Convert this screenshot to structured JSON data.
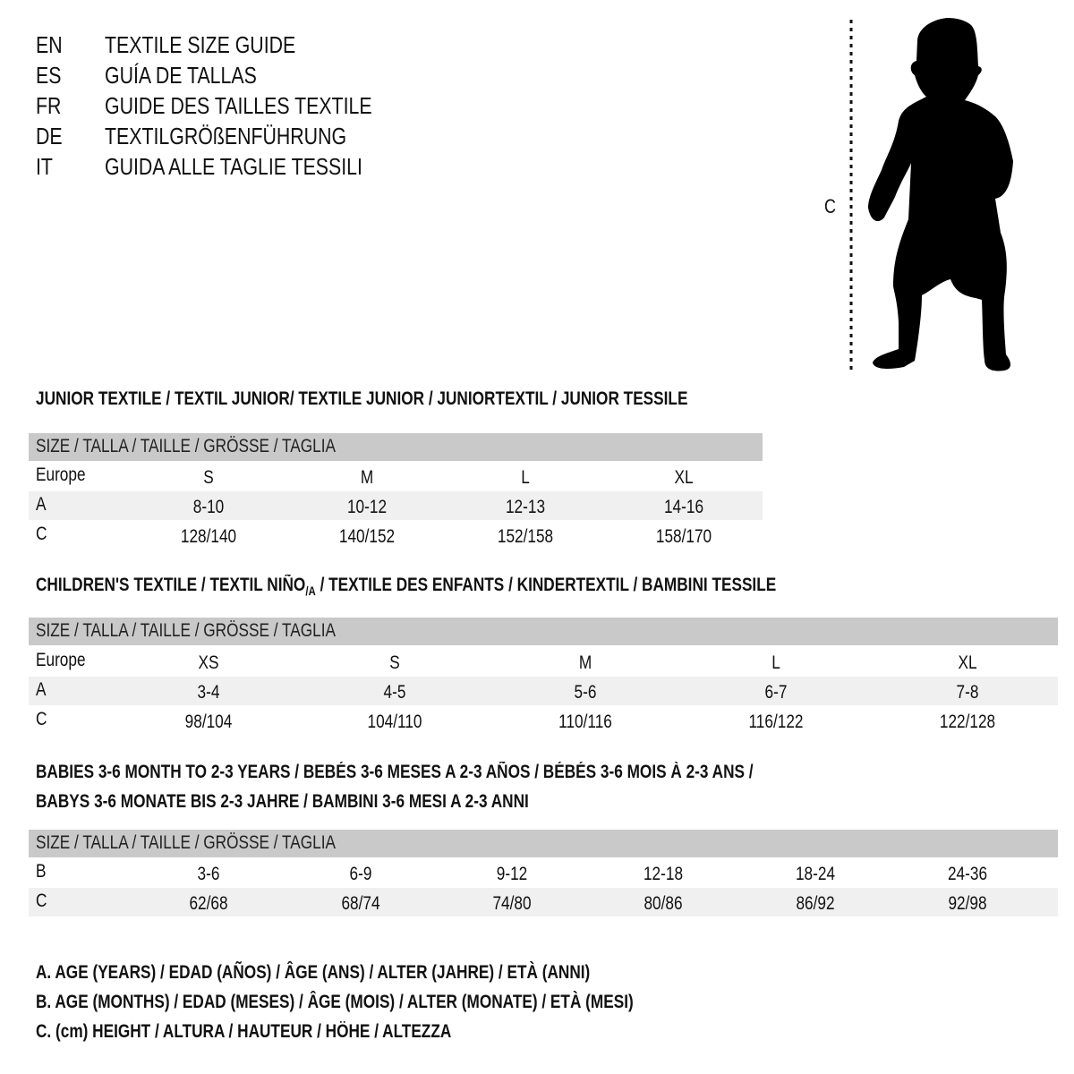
{
  "titles": [
    {
      "code": "EN",
      "text": "TEXTILE SIZE GUIDE"
    },
    {
      "code": "ES",
      "text": "GUÍA DE TALLAS"
    },
    {
      "code": "FR",
      "text": "GUIDE DES TAILLES TEXTILE"
    },
    {
      "code": "DE",
      "text": "TEXTILGRÖßENFÜHRUNG"
    },
    {
      "code": "IT",
      "text": "GUIDA ALLE TAGLIE TESSILI"
    }
  ],
  "figure": {
    "height_label": "C",
    "icon": "child-silhouette-icon"
  },
  "colors": {
    "header_bar": "#c9c9c9",
    "shaded_row": "#f0f0f0",
    "text": "#111111"
  },
  "size_header": "SIZE / TALLA / TAILLE / GRÖSSE / TAGLIA",
  "junior": {
    "heading": "JUNIOR TEXTILE / TEXTIL JUNIOR/ TEXTILE JUNIOR / JUNIORTEXTIL / JUNIOR TESSILE",
    "rows": [
      {
        "label": "Europe",
        "values": [
          "S",
          "M",
          "L",
          "XL"
        ]
      },
      {
        "label": "A",
        "values": [
          "8-10",
          "10-12",
          "12-13",
          "14-16"
        ]
      },
      {
        "label": "C",
        "values": [
          "128/140",
          "140/152",
          "152/158",
          "158/170"
        ]
      }
    ]
  },
  "children": {
    "heading_a": "CHILDREN'S TEXTILE / TEXTIL NIÑO",
    "heading_sub": "/A",
    "heading_b": " / TEXTILE DES ENFANTS / KINDERTEXTIL / BAMBINI TESSILE",
    "rows": [
      {
        "label": "Europe",
        "values": [
          "XS",
          "S",
          "M",
          "L",
          "XL"
        ]
      },
      {
        "label": "A",
        "values": [
          "3-4",
          "4-5",
          "5-6",
          "6-7",
          "7-8"
        ]
      },
      {
        "label": "C",
        "values": [
          "98/104",
          "104/110",
          "110/116",
          "116/122",
          "122/128"
        ]
      }
    ]
  },
  "babies": {
    "heading_line1": "BABIES 3-6 MONTH TO 2-3 YEARS / BEBÉS 3-6 MESES A 2-3 AÑOS / BÉBÉS 3-6 MOIS À 2-3 ANS /",
    "heading_line2": "BABYS 3-6 MONATE BIS 2-3 JAHRE / BAMBINI 3-6 MESI A 2-3 ANNI",
    "rows": [
      {
        "label": "B",
        "values": [
          "3-6",
          "6-9",
          "9-12",
          "12-18",
          "18-24",
          "24-36"
        ]
      },
      {
        "label": "C",
        "values": [
          "62/68",
          "68/74",
          "74/80",
          "80/86",
          "86/92",
          "92/98"
        ]
      }
    ]
  },
  "legend": [
    "A. AGE (YEARS) / EDAD (AÑOS) / ÂGE (ANS) / ALTER (JAHRE) / ETÀ (ANNI)",
    "B. AGE (MONTHS) / EDAD (MESES) / ÂGE (MOIS) / ALTER (MONATE) / ETÀ (MESI)",
    "C. (cm) HEIGHT / ALTURA / HAUTEUR / HÖHE / ALTEZZA"
  ]
}
